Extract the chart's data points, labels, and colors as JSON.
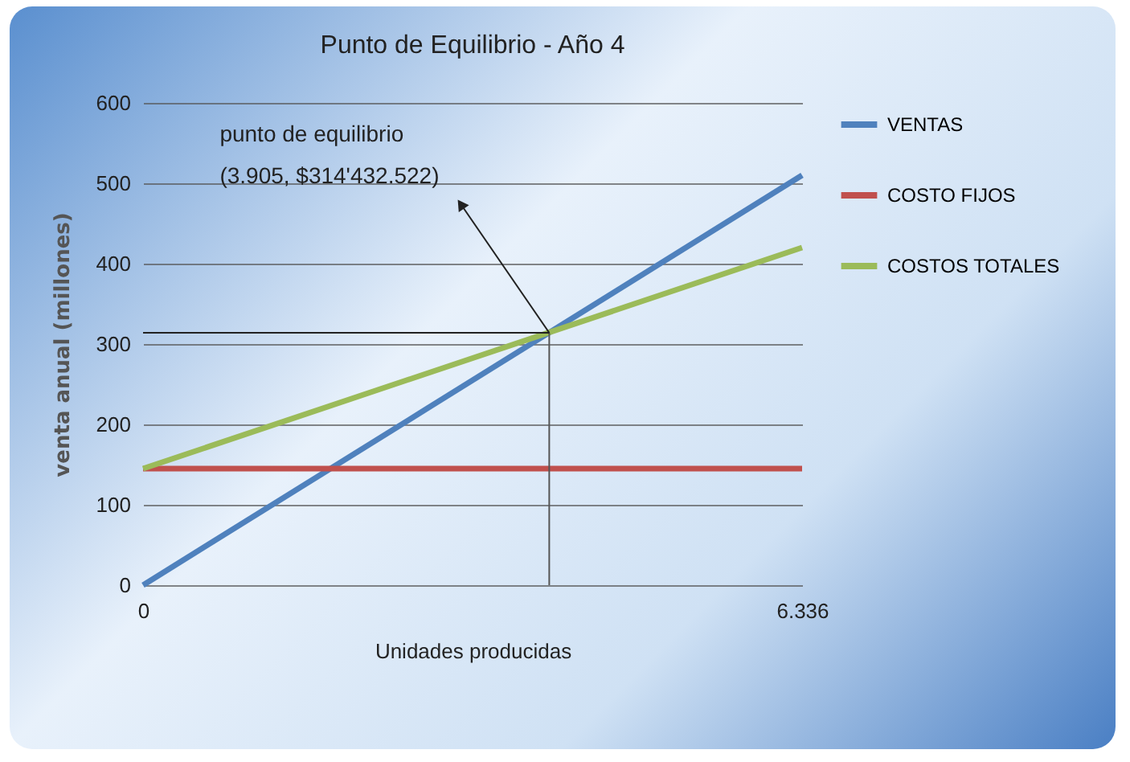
{
  "chart_data": {
    "type": "line",
    "title": "Punto de Equilibrio - Año 4",
    "xlabel": "Unidades producidas",
    "ylabel": "venta anual (millones)",
    "x": [
      0,
      6336
    ],
    "series": [
      {
        "name": "VENTAS",
        "color": "#4f81bd",
        "values": [
          0,
          510
        ]
      },
      {
        "name": "COSTO FIJOS",
        "color": "#c0504d",
        "values": [
          145,
          145
        ]
      },
      {
        "name": "COSTOS TOTALES",
        "color": "#9bbb59",
        "values": [
          145,
          420
        ]
      }
    ],
    "xlim": [
      0,
      6336
    ],
    "xticks": [
      0,
      {
        "value": 6336,
        "label": "6.336"
      }
    ],
    "ylim": [
      0,
      600
    ],
    "yticks": [
      0,
      100,
      200,
      300,
      400,
      500,
      600
    ],
    "grid": "y",
    "legend": "right",
    "marker": "none",
    "line_style": "solid",
    "ref_lines": [
      {
        "axis": "x",
        "value": 3905,
        "color": "#555555"
      },
      {
        "axis": "y",
        "value": 314,
        "color": "#222222"
      }
    ],
    "annotations": [
      {
        "text": "punto de equilibrio\n(3.905, $314'432.522)",
        "x": 3905,
        "y": 314
      }
    ]
  }
}
